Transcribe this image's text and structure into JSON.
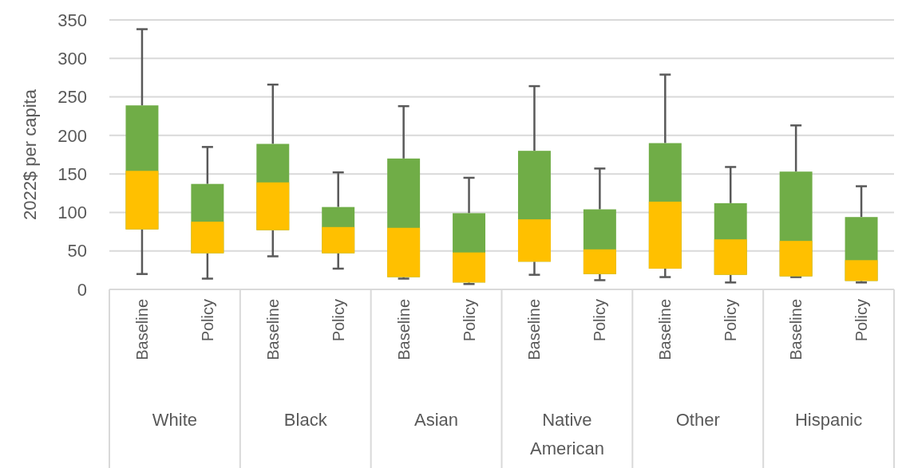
{
  "chart_data": {
    "type": "box",
    "ylabel": "2022$ per capita",
    "categories": [
      "Baseline",
      "Policy",
      "Baseline",
      "Policy",
      "Baseline",
      "Policy",
      "Baseline",
      "Policy",
      "Baseline",
      "Policy",
      "Baseline",
      "Policy"
    ],
    "annotations": [
      "White",
      "Black",
      "Asian",
      "Native American",
      "Other",
      "Hispanic"
    ],
    "colors": [
      "#ffc000",
      "#ffc000",
      "#ffc000",
      "#ffc000",
      "#ffc000",
      "#ffc000",
      "#ffc000",
      "#ffc000",
      "#ffc000",
      "#ffc000",
      "#ffc000",
      "#ffc000"
    ],
    "series": [
      {
        "color": "#70ad47",
        "boxes": [
          {
            "low": 20,
            "q1": 78,
            "median": 154,
            "q3": 239,
            "high": 338
          },
          {
            "low": 14,
            "q1": 47,
            "median": 88,
            "q3": 137,
            "high": 185
          },
          {
            "low": 43,
            "q1": 77,
            "median": 139,
            "q3": 189,
            "high": 266
          },
          {
            "low": 27,
            "q1": 47,
            "median": 81,
            "q3": 107,
            "high": 152
          },
          {
            "low": 14,
            "q1": 16,
            "median": 80,
            "q3": 170,
            "high": 238
          },
          {
            "low": 7,
            "q1": 9,
            "median": 48,
            "q3": 99,
            "high": 145
          },
          {
            "low": 19,
            "q1": 36,
            "median": 91,
            "q3": 180,
            "high": 264
          },
          {
            "low": 12,
            "q1": 20,
            "median": 52,
            "q3": 104,
            "high": 157
          },
          {
            "low": 16,
            "q1": 27,
            "median": 114,
            "q3": 190,
            "high": 279
          },
          {
            "low": 9,
            "q1": 19,
            "median": 65,
            "q3": 112,
            "high": 159
          },
          {
            "low": 16,
            "q1": 17,
            "median": 63,
            "q3": 153,
            "high": 213
          },
          {
            "low": 9,
            "q1": 11,
            "median": 38,
            "q3": 94,
            "high": 134
          }
        ]
      }
    ],
    "ylim": [
      0,
      350
    ],
    "yticks": [
      0,
      50,
      100,
      150,
      200,
      250,
      300,
      350
    ],
    "grid": "y"
  }
}
